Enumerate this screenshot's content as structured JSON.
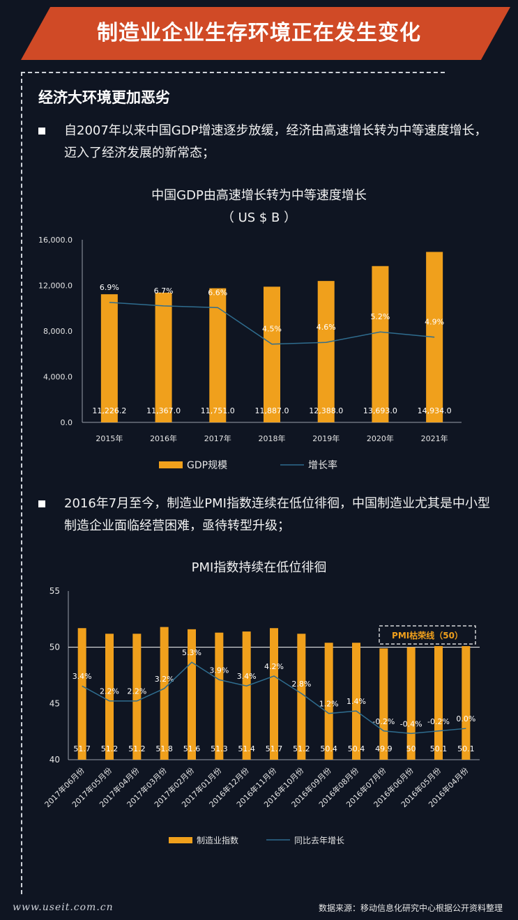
{
  "header": {
    "title": "制造业企业生存环境正在发生变化"
  },
  "section": {
    "title": "经济大环境更加恶劣"
  },
  "bullets": [
    {
      "line1": "自2007年以来中国GDP增速逐步放缓，经济由高速增长转为中等速度增长，",
      "line2": "迈入了经济发展的新常态；"
    },
    {
      "line1": "2016年7月至今，制造业PMI指数连续在低位徘徊，中国制造业尤其是中小型",
      "line2": "制造企业面临经营困难，亟待转型升级；"
    }
  ],
  "chart_data": [
    {
      "type": "bar",
      "title": "中国GDP由高速增长转为中等速度增长",
      "subtitle": "（ US $ B ）",
      "categories": [
        "2015年",
        "2016年",
        "2017年",
        "2018年",
        "2019年",
        "2020年",
        "2021年"
      ],
      "series": [
        {
          "name": "GDP规模",
          "type": "bar",
          "values": [
            11226.2,
            11367.0,
            11751.0,
            11887.0,
            12388.0,
            13693.0,
            14934.0
          ],
          "labels": [
            "11,226.2",
            "11,367.0",
            "11,751.0",
            "11,887.0",
            "12,388.0",
            "13,693.0",
            "14,934.0"
          ]
        },
        {
          "name": "增长率",
          "type": "line",
          "values": [
            6.9,
            6.7,
            6.6,
            4.5,
            4.6,
            5.2,
            4.9
          ],
          "labels": [
            "6.9%",
            "6.7%",
            "6.6%",
            "4.5%",
            "4.6%",
            "5.2%",
            "4.9%"
          ]
        }
      ],
      "yticks": [
        "0.0",
        "4,000.0",
        "8,000.0",
        "12,000.0",
        "16,000.0"
      ],
      "ylim": [
        0,
        16000
      ],
      "line_ylim": [
        0,
        10.5
      ],
      "legend": [
        "GDP规模",
        "增长率"
      ]
    },
    {
      "type": "bar",
      "title": "PMI指数持续在低位徘徊",
      "categories": [
        "2017年06月份",
        "2017年05月份",
        "2017年04月份",
        "2017年03月份",
        "2017年02月份",
        "2017年01月份",
        "2016年12月份",
        "2016年11月份",
        "2016年10月份",
        "2016年09月份",
        "2016年08月份",
        "2016年07月份",
        "2016年06月份",
        "2016年05月份",
        "2016年04月份"
      ],
      "series": [
        {
          "name": "制造业指数",
          "type": "bar",
          "values": [
            51.7,
            51.2,
            51.2,
            51.8,
            51.6,
            51.3,
            51.4,
            51.7,
            51.2,
            50.4,
            50.4,
            49.9,
            50,
            50.1,
            50.1
          ],
          "labels": [
            "51.7",
            "51.2",
            "51.2",
            "51.8",
            "51.6",
            "51.3",
            "51.4",
            "51.7",
            "51.2",
            "50.4",
            "50.4",
            "49.9",
            "50",
            "50.1",
            "50.1"
          ]
        },
        {
          "name": "同比去年增长",
          "type": "line",
          "values": [
            3.4,
            2.2,
            2.2,
            3.2,
            5.3,
            3.9,
            3.4,
            4.2,
            2.8,
            1.2,
            1.4,
            -0.2,
            -0.4,
            -0.2,
            0.0
          ],
          "labels": [
            "3.4%",
            "2.2%",
            "2.2%",
            "3.2%",
            "5.3%",
            "3.9%",
            "3.4%",
            "4.2%",
            "2.8%",
            "1.2%",
            "1.4%",
            "-0.2%",
            "-0.4%",
            "-0.2%",
            "0.0%"
          ]
        }
      ],
      "yticks": [
        "40",
        "45",
        "50",
        "55"
      ],
      "ylim": [
        40,
        55
      ],
      "line_ylim": [
        -2.5,
        11
      ],
      "reference_line": {
        "value": 50,
        "label": "PMI枯荣线（50）"
      },
      "legend": [
        "制造业指数",
        "同比去年增长"
      ]
    }
  ],
  "footer": {
    "website": "www.useit.com.cn",
    "source": "数据来源：移动信息化研究中心根据公开资料整理"
  },
  "colors": {
    "banner": "#d04a26",
    "bar": "#f0a01c",
    "line": "#2f6d8f",
    "background": "#0f1522"
  }
}
